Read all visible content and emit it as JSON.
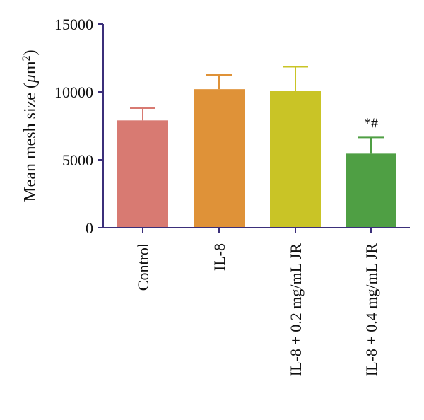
{
  "chart_data": {
    "type": "bar",
    "categories": [
      "Control",
      "IL-8",
      "IL-8 + 0.2 mg/mL JR",
      "IL-8 + 0.4 mg/mL JR"
    ],
    "values": [
      7900,
      10200,
      10100,
      5450
    ],
    "error_upper": [
      8800,
      11250,
      11850,
      6650
    ],
    "colors": [
      "#d87a72",
      "#df9238",
      "#c9c426",
      "#4f9f44"
    ],
    "ylabel_prefix": "Mean mesh size (",
    "ylabel_mu": "μ",
    "ylabel_unit": "m",
    "ylabel_sup": "2",
    "ylabel_suffix": ")",
    "ylim": [
      0,
      15000
    ],
    "yticks": [
      "0",
      "5000",
      "10000",
      "15000"
    ],
    "annotations": [
      {
        "category": "IL-8 + 0.4 mg/mL JR",
        "text": "*#"
      }
    ],
    "axis_color": "#3b2f7a",
    "grid": false
  }
}
